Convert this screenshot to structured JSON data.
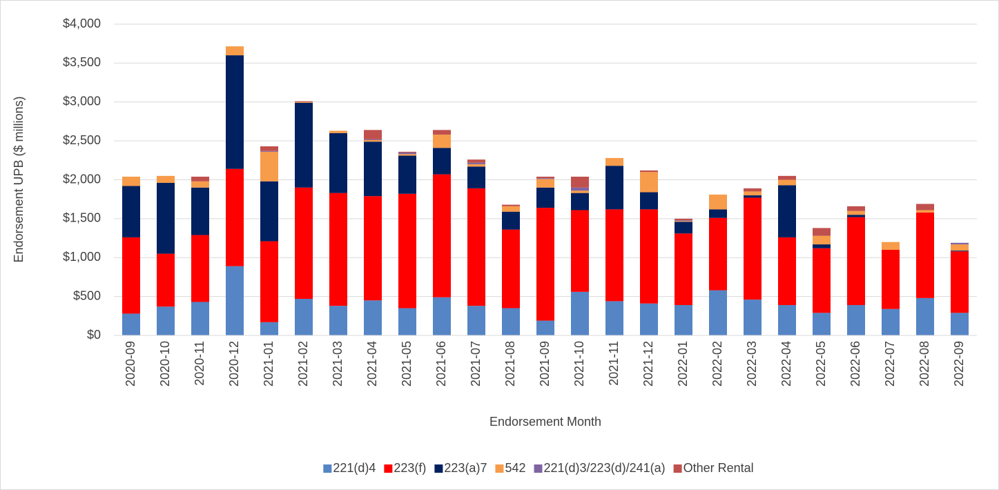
{
  "chart_data": {
    "type": "stacked_bar",
    "x_label": "Endorsement Month",
    "y_label": "Endorsement UPB ($ millions)",
    "categories": [
      "2020-09",
      "2020-10",
      "2020-11",
      "2020-12",
      "2021-01",
      "2021-02",
      "2021-03",
      "2021-04",
      "2021-05",
      "2021-06",
      "2021-07",
      "2021-08",
      "2021-09",
      "2021-10",
      "2021-11",
      "2021-12",
      "2022-01",
      "2022-02",
      "2022-03",
      "2022-04",
      "2022-05",
      "2022-06",
      "2022-07",
      "2022-08",
      "2022-09"
    ],
    "series": [
      {
        "name": "221(d)4",
        "color": "#5585c5",
        "values": [
          280,
          370,
          430,
          890,
          170,
          470,
          380,
          450,
          350,
          490,
          380,
          350,
          190,
          560,
          440,
          410,
          390,
          580,
          460,
          390,
          290,
          390,
          340,
          480,
          290
        ]
      },
      {
        "name": "223(f)",
        "color": "#ff0000",
        "values": [
          980,
          680,
          860,
          1250,
          1040,
          1430,
          1450,
          1340,
          1470,
          1580,
          1510,
          1010,
          1450,
          1050,
          1180,
          1210,
          920,
          930,
          1310,
          870,
          830,
          1130,
          760,
          1100,
          790
        ]
      },
      {
        "name": "223(a)7",
        "color": "#002060",
        "values": [
          660,
          910,
          610,
          1460,
          770,
          1090,
          770,
          700,
          490,
          340,
          280,
          230,
          260,
          220,
          560,
          220,
          150,
          110,
          30,
          670,
          50,
          30,
          0,
          0,
          10
        ]
      },
      {
        "name": "542",
        "color": "#f79c4a",
        "values": [
          120,
          90,
          80,
          115,
          380,
          10,
          30,
          20,
          20,
          170,
          30,
          70,
          110,
          30,
          100,
          260,
          10,
          190,
          50,
          70,
          110,
          50,
          100,
          30,
          80
        ]
      },
      {
        "name": "221(d)3/223(d)/241(a)",
        "color": "#8064a2",
        "values": [
          0,
          0,
          0,
          0,
          10,
          0,
          0,
          10,
          20,
          0,
          20,
          0,
          10,
          40,
          0,
          0,
          10,
          0,
          0,
          0,
          0,
          0,
          0,
          0,
          20
        ]
      },
      {
        "name": "Other Rental",
        "color": "#c0504d",
        "values": [
          0,
          0,
          60,
          0,
          60,
          10,
          0,
          120,
          10,
          60,
          40,
          20,
          20,
          140,
          0,
          20,
          20,
          0,
          40,
          50,
          100,
          60,
          0,
          80,
          0
        ]
      }
    ],
    "ylim": [
      0,
      4000
    ],
    "yticks": [
      {
        "value": 0,
        "label": "$0"
      },
      {
        "value": 500,
        "label": "$500"
      },
      {
        "value": 1000,
        "label": "$1,000"
      },
      {
        "value": 1500,
        "label": "$1,500"
      },
      {
        "value": 2000,
        "label": "$2,000"
      },
      {
        "value": 2500,
        "label": "$2,500"
      },
      {
        "value": 3000,
        "label": "$3,000"
      },
      {
        "value": 3500,
        "label": "$3,500"
      },
      {
        "value": 4000,
        "label": "$4,000"
      }
    ],
    "grid": true
  }
}
